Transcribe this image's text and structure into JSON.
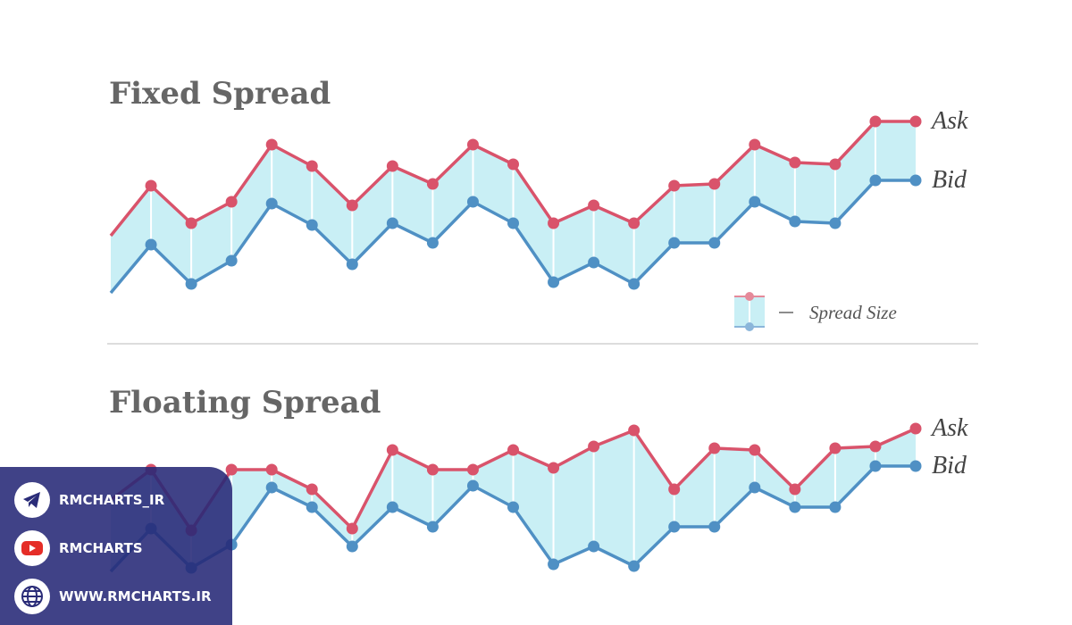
{
  "chart_data": [
    {
      "type": "line",
      "title": "Fixed Spread",
      "annotation": "Spread Size",
      "series": [
        {
          "name": "Ask",
          "color": "#d9536b",
          "values": [
            38,
            66,
            45,
            57,
            89,
            77,
            55,
            77,
            67,
            89,
            78,
            45,
            55,
            45,
            66,
            67,
            89,
            79,
            78,
            102,
            102
          ]
        },
        {
          "name": "Bid",
          "color": "#4f90c4",
          "values": [
            6,
            33,
            11,
            24,
            56,
            44,
            22,
            45,
            34,
            57,
            45,
            12,
            23,
            11,
            34,
            34,
            57,
            46,
            45,
            69,
            69
          ]
        }
      ]
    },
    {
      "type": "line",
      "title": "Floating Spread",
      "series": [
        {
          "name": "Ask",
          "color": "#d9536b",
          "values": [
            60,
            77,
            43,
            77,
            77,
            66,
            44,
            88,
            77,
            77,
            88,
            78,
            90,
            99,
            66,
            89,
            88,
            66,
            89,
            90,
            100
          ]
        },
        {
          "name": "Bid",
          "color": "#4f90c4",
          "values": [
            20,
            44,
            22,
            35,
            67,
            56,
            34,
            56,
            45,
            68,
            56,
            24,
            34,
            23,
            45,
            45,
            67,
            56,
            56,
            79,
            79
          ]
        }
      ]
    }
  ],
  "overlay": {
    "links": [
      "RMCHARTS_IR",
      "RMCHARTS",
      "WWW.RMCHARTS.IR"
    ]
  }
}
